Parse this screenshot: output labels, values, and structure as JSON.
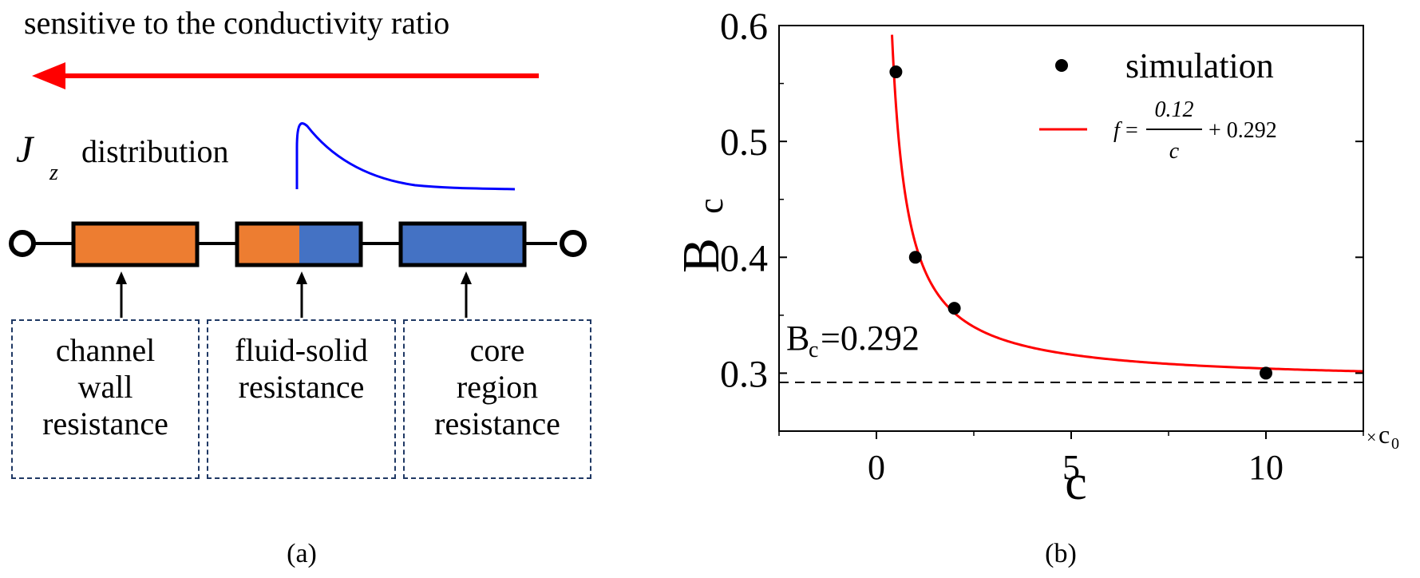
{
  "panel_a": {
    "top_text": "sensitive to the conductivity ratio",
    "jz_symbol": "J",
    "jz_subscript": "z",
    "jz_text": "distribution",
    "labels": [
      {
        "lines": [
          "channel",
          "wall",
          "resistance"
        ]
      },
      {
        "lines": [
          "fluid-solid",
          "resistance"
        ]
      },
      {
        "lines": [
          "core",
          "region",
          "resistance"
        ]
      }
    ],
    "caption": "(a)",
    "colors": {
      "arrow": "#ff0000",
      "jz_curve": "#0000ff",
      "orange": "#ed7d31",
      "blue": "#4472c4",
      "dashed_border": "#1f3864"
    }
  },
  "panel_b": {
    "caption": "(b)",
    "annotation": {
      "main": "B",
      "sub": "c",
      "rest": "=0.292"
    }
  },
  "chart_data": {
    "type": "scatter",
    "ylabel_main": "B",
    "ylabel_sub": "c",
    "xlabel": "c",
    "xunit_prefix": "×",
    "xunit_main": "c",
    "xunit_sub": "0",
    "xlim": [
      -2.5,
      12.5
    ],
    "ylim": [
      0.25,
      0.6
    ],
    "xticks": [
      0,
      5,
      10
    ],
    "yticks": [
      0.3,
      0.4,
      0.5,
      0.6
    ],
    "ytick_labels": [
      "0.3",
      "0.4",
      "0.5",
      "0.6"
    ],
    "series": [
      {
        "name": "simulation",
        "kind": "points",
        "color": "#000000",
        "x": [
          0.5,
          1,
          2,
          10
        ],
        "y": [
          0.56,
          0.4,
          0.356,
          0.3
        ]
      },
      {
        "kind": "curve",
        "color": "#ff0000",
        "a": 0.12,
        "b": 0.292,
        "x_start": 0.4,
        "x_end": 12.5
      }
    ],
    "legend_formula": {
      "f": "f",
      "eq": "=",
      "num": "0.12",
      "den": "c",
      "plus": "+ 0.292"
    },
    "legend_placement": "top-right",
    "reference_line": {
      "y": 0.292,
      "style": "dashed"
    }
  }
}
